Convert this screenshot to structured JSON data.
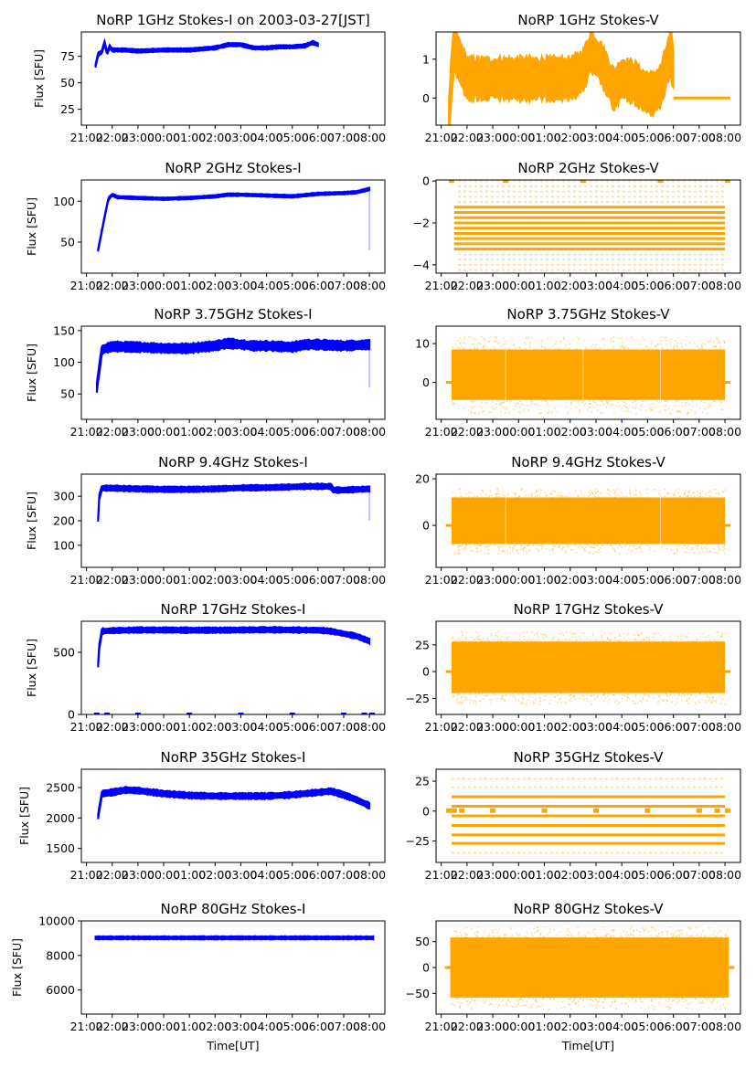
{
  "figure_title": "NoRP 1GHz Stokes-I on 2003-03-27[JST]",
  "colors": {
    "stokes_i": "#0000ff",
    "stokes_v": "#ffa500"
  },
  "chart_data": [
    {
      "type": "scatter",
      "title": "NoRP 1GHz Stokes-I on 2003-03-27[JST]",
      "xlabel": "",
      "ylabel": "Flux [SFU]",
      "ylim": [
        10,
        98
      ],
      "yticks": [
        25,
        50,
        75
      ],
      "xticks": [
        "21:00",
        "22:00",
        "23:00",
        "00:00",
        "01:00",
        "02:00",
        "03:00",
        "04:00",
        "05:00",
        "06:00",
        "07:00",
        "08:00"
      ],
      "xlim_hours": [
        20.8,
        32.6
      ],
      "series": [
        {
          "name": "Stokes-I",
          "color": "#0000ff",
          "x_hours": [
            21.35,
            21.45,
            21.6,
            21.7,
            21.8,
            21.9,
            22.0,
            22.5,
            23.0,
            24.0,
            25.0,
            26.0,
            26.5,
            27.0,
            27.5,
            28.0,
            28.5,
            29.0,
            29.5,
            29.8,
            30.0
          ],
          "y": [
            66,
            77,
            79,
            88,
            78,
            84,
            81,
            81,
            80,
            81,
            81,
            83,
            86,
            86,
            83,
            83,
            84,
            84,
            85,
            88,
            86
          ],
          "spread": 1.5
        }
      ]
    },
    {
      "type": "scatter",
      "title": "NoRP 1GHz Stokes-V",
      "xlabel": "",
      "ylabel": "",
      "ylim": [
        -0.7,
        1.7
      ],
      "yticks": [
        0,
        1
      ],
      "xticks": [
        "21:00",
        "22:00",
        "23:00",
        "00:00",
        "01:00",
        "02:00",
        "03:00",
        "04:00",
        "05:00",
        "06:00",
        "07:00",
        "08:00"
      ],
      "xlim_hours": [
        20.8,
        32.6
      ],
      "series": [
        {
          "name": "Stokes-V",
          "color": "#ffa500",
          "x_hours": [
            21.3,
            21.4,
            21.5,
            22.0,
            23.0,
            24.0,
            25.0,
            26.0,
            26.5,
            26.8,
            27.2,
            27.7,
            28.0,
            28.5,
            28.8,
            29.2,
            29.5,
            29.9,
            30.0
          ],
          "y": [
            -0.6,
            0.6,
            1.3,
            0.5,
            0.5,
            0.5,
            0.5,
            0.5,
            0.7,
            1.2,
            0.9,
            0.2,
            0.5,
            0.4,
            0.2,
            0.1,
            0.3,
            1.2,
            0.7
          ],
          "spread": 0.5,
          "flat_segment": {
            "x_hours": [
              30.0,
              32.2
            ],
            "y": 0
          }
        }
      ]
    },
    {
      "type": "scatter",
      "title": "NoRP 2GHz Stokes-I",
      "xlabel": "",
      "ylabel": "Flux [SFU]",
      "ylim": [
        12,
        126
      ],
      "yticks": [
        50,
        100
      ],
      "xticks": [
        "21:00",
        "22:00",
        "23:00",
        "00:00",
        "01:00",
        "02:00",
        "03:00",
        "04:00",
        "05:00",
        "06:00",
        "07:00",
        "08:00"
      ],
      "xlim_hours": [
        20.8,
        32.6
      ],
      "series": [
        {
          "name": "Stokes-I",
          "color": "#0000ff",
          "x_hours": [
            21.45,
            21.7,
            21.85,
            22.0,
            22.2,
            23.0,
            24.0,
            25.0,
            26.0,
            26.5,
            27.0,
            28.0,
            29.0,
            30.0,
            31.0,
            31.5,
            32.0
          ],
          "y": [
            40,
            80,
            103,
            108,
            105,
            104,
            103,
            104,
            106,
            108,
            108,
            107,
            106,
            109,
            110,
            111,
            115
          ],
          "spread": 1.5,
          "dropout": {
            "x_hours": 32.0,
            "y_min": 40
          }
        }
      ]
    },
    {
      "type": "scatter",
      "title": "NoRP 2GHz Stokes-V",
      "xlabel": "",
      "ylabel": "",
      "ylim": [
        -4.4,
        0.05
      ],
      "yticks": [
        -4,
        -2,
        0
      ],
      "xticks": [
        "21:00",
        "22:00",
        "23:00",
        "00:00",
        "01:00",
        "02:00",
        "03:00",
        "04:00",
        "05:00",
        "06:00",
        "07:00",
        "08:00"
      ],
      "xlim_hours": [
        20.8,
        32.6
      ],
      "series": [
        {
          "name": "Stokes-V",
          "color": "#ffa500",
          "quantized_levels": [
            -4.25,
            -4.0,
            -3.75,
            -3.5,
            -3.25,
            -3.0,
            -2.75,
            -2.5,
            -2.25,
            -2.0,
            -1.75,
            -1.5,
            -1.25,
            -1.0,
            -0.75,
            -0.5,
            -0.25,
            0
          ],
          "dense_levels": [
            -3.25,
            -3.0,
            -2.75,
            -2.5,
            -2.25,
            -2.0,
            -1.75,
            -1.5,
            -1.25
          ],
          "x_range_hours": [
            21.4,
            32.0
          ],
          "zero_marks_hours": [
            21.4,
            23.5,
            26.5,
            29.5,
            32.1
          ]
        }
      ]
    },
    {
      "type": "scatter",
      "title": "NoRP 3.75GHz Stokes-I",
      "xlabel": "",
      "ylabel": "Flux [SFU]",
      "ylim": [
        10,
        157
      ],
      "yticks": [
        50,
        100,
        150
      ],
      "xticks": [
        "21:00",
        "22:00",
        "23:00",
        "00:00",
        "01:00",
        "02:00",
        "03:00",
        "04:00",
        "05:00",
        "06:00",
        "07:00",
        "08:00"
      ],
      "xlim_hours": [
        20.8,
        32.6
      ],
      "series": [
        {
          "name": "Stokes-I",
          "color": "#0000ff",
          "x_hours": [
            21.4,
            21.5,
            21.6,
            22.0,
            23.0,
            24.0,
            25.0,
            26.0,
            26.5,
            27.0,
            27.5,
            28.0,
            29.0,
            29.5,
            30.0,
            31.0,
            32.0
          ],
          "y": [
            60,
            90,
            120,
            125,
            124,
            122,
            122,
            126,
            130,
            128,
            126,
            126,
            124,
            128,
            128,
            126,
            128
          ],
          "spread": 7,
          "dropout": {
            "x_hours": 32.0,
            "y_min": 60
          }
        }
      ]
    },
    {
      "type": "scatter",
      "title": "NoRP 3.75GHz Stokes-V",
      "xlabel": "",
      "ylabel": "",
      "ylim": [
        -9.5,
        14.5
      ],
      "yticks": [
        0,
        10
      ],
      "xticks": [
        "21:00",
        "22:00",
        "23:00",
        "00:00",
        "01:00",
        "02:00",
        "03:00",
        "04:00",
        "05:00",
        "06:00",
        "07:00",
        "08:00"
      ],
      "xlim_hours": [
        20.8,
        32.6
      ],
      "series": [
        {
          "name": "Stokes-V",
          "color": "#ffa500",
          "x_range_hours": [
            21.4,
            32.0
          ],
          "center": 2,
          "half_width": 6.5,
          "outlier_half_width": 10,
          "gaps_hours": [
            23.5,
            26.5,
            29.5
          ]
        }
      ]
    },
    {
      "type": "scatter",
      "title": "NoRP 9.4GHz Stokes-I",
      "xlabel": "",
      "ylabel": "Flux [SFU]",
      "ylim": [
        10,
        390
      ],
      "yticks": [
        100,
        200,
        300
      ],
      "xticks": [
        "21:00",
        "22:00",
        "23:00",
        "00:00",
        "01:00",
        "02:00",
        "03:00",
        "04:00",
        "05:00",
        "06:00",
        "07:00",
        "08:00"
      ],
      "xlim_hours": [
        20.8,
        32.6
      ],
      "series": [
        {
          "name": "Stokes-I",
          "color": "#0000ff",
          "x_hours": [
            21.45,
            21.5,
            21.6,
            22.0,
            23.0,
            24.0,
            25.0,
            26.0,
            27.0,
            28.0,
            29.0,
            29.5,
            30.5,
            30.6,
            31.0,
            32.0
          ],
          "y": [
            205,
            300,
            333,
            333,
            330,
            328,
            328,
            330,
            334,
            335,
            338,
            340,
            340,
            325,
            325,
            330
          ],
          "spread": 10,
          "dropout": {
            "x_hours": 32.0,
            "y_min": 200
          }
        }
      ]
    },
    {
      "type": "scatter",
      "title": "NoRP 9.4GHz Stokes-V",
      "xlabel": "",
      "ylabel": "",
      "ylim": [
        -18,
        22
      ],
      "yticks": [
        0,
        20
      ],
      "xticks": [
        "21:00",
        "22:00",
        "23:00",
        "00:00",
        "01:00",
        "02:00",
        "03:00",
        "04:00",
        "05:00",
        "06:00",
        "07:00",
        "08:00"
      ],
      "xlim_hours": [
        20.8,
        32.6
      ],
      "series": [
        {
          "name": "Stokes-V",
          "color": "#ffa500",
          "x_range_hours": [
            21.4,
            32.0
          ],
          "center": 2,
          "half_width": 10,
          "outlier_half_width": 14,
          "gaps_hours": [
            23.5,
            29.5
          ]
        }
      ]
    },
    {
      "type": "scatter",
      "title": "NoRP 17GHz Stokes-I",
      "xlabel": "",
      "ylabel": "Flux [SFU]",
      "ylim": [
        0,
        750
      ],
      "yticks": [
        0,
        500
      ],
      "xticks": [
        "21:00",
        "22:00",
        "23:00",
        "00:00",
        "01:00",
        "02:00",
        "03:00",
        "04:00",
        "05:00",
        "06:00",
        "07:00",
        "08:00"
      ],
      "xlim_hours": [
        20.8,
        32.6
      ],
      "series": [
        {
          "name": "Stokes-I",
          "color": "#0000ff",
          "x_hours": [
            21.45,
            21.5,
            21.6,
            22.0,
            23.0,
            24.0,
            25.0,
            26.0,
            27.0,
            28.0,
            29.0,
            30.0,
            30.5,
            31.0,
            31.5,
            32.0
          ],
          "y": [
            400,
            550,
            670,
            675,
            680,
            680,
            678,
            678,
            680,
            682,
            680,
            678,
            670,
            650,
            630,
            590
          ],
          "spread": 20,
          "zero_marks_hours": [
            21.4,
            21.8,
            23.0,
            25.0,
            27.0,
            29.0,
            31.0,
            31.8,
            32.1
          ]
        }
      ]
    },
    {
      "type": "scatter",
      "title": "NoRP 17GHz Stokes-V",
      "xlabel": "",
      "ylabel": "",
      "ylim": [
        -40,
        47
      ],
      "yticks": [
        -25,
        0,
        25
      ],
      "xticks": [
        "21:00",
        "22:00",
        "23:00",
        "00:00",
        "01:00",
        "02:00",
        "03:00",
        "04:00",
        "05:00",
        "06:00",
        "07:00",
        "08:00"
      ],
      "xlim_hours": [
        20.8,
        32.6
      ],
      "series": [
        {
          "name": "Stokes-V",
          "color": "#ffa500",
          "x_range_hours": [
            21.4,
            32.0
          ],
          "center": 4,
          "half_width": 24,
          "outlier_half_width": 34,
          "gaps_hours": []
        }
      ]
    },
    {
      "type": "scatter",
      "title": "NoRP 35GHz Stokes-I",
      "xlabel": "",
      "ylabel": "Flux [SFU]",
      "ylim": [
        1270,
        2800
      ],
      "yticks": [
        1500,
        2000,
        2500
      ],
      "xticks": [
        "21:00",
        "22:00",
        "23:00",
        "00:00",
        "01:00",
        "02:00",
        "03:00",
        "04:00",
        "05:00",
        "06:00",
        "07:00",
        "08:00"
      ],
      "xlim_hours": [
        20.8,
        32.6
      ],
      "series": [
        {
          "name": "Stokes-I",
          "color": "#0000ff",
          "x_hours": [
            21.45,
            21.5,
            21.6,
            22.0,
            22.5,
            23.0,
            24.0,
            25.0,
            26.0,
            27.0,
            28.0,
            29.0,
            30.0,
            30.5,
            31.0,
            31.5,
            32.0
          ],
          "y": [
            2020,
            2150,
            2400,
            2420,
            2460,
            2450,
            2400,
            2370,
            2360,
            2360,
            2360,
            2380,
            2420,
            2440,
            2380,
            2300,
            2200
          ],
          "spread": 45
        }
      ]
    },
    {
      "type": "scatter",
      "title": "NoRP 35GHz Stokes-V",
      "xlabel": "",
      "ylabel": "",
      "ylim": [
        -43,
        35
      ],
      "yticks": [
        -25,
        0,
        25
      ],
      "xticks": [
        "21:00",
        "22:00",
        "23:00",
        "00:00",
        "01:00",
        "02:00",
        "03:00",
        "04:00",
        "05:00",
        "06:00",
        "07:00",
        "08:00"
      ],
      "xlim_hours": [
        20.8,
        32.6
      ],
      "series": [
        {
          "name": "Stokes-V",
          "color": "#ffa500",
          "dense_levels": [
            -27,
            -20,
            -12,
            -4,
            4,
            12
          ],
          "sparse_levels": [
            -35,
            20,
            27
          ],
          "x_range_hours": [
            21.4,
            32.0
          ],
          "zero_marks_hours": [
            21.3,
            21.5,
            21.8,
            23.0,
            25.0,
            27.0,
            29.0,
            31.0,
            31.7,
            32.1
          ]
        }
      ]
    },
    {
      "type": "scatter",
      "title": "NoRP 80GHz Stokes-I",
      "xlabel": "Time[UT]",
      "ylabel": "Flux [SFU]",
      "ylim": [
        4600,
        10000
      ],
      "yticks": [
        6000,
        8000,
        10000
      ],
      "xticks": [
        "21:00",
        "22:00",
        "23:00",
        "00:00",
        "01:00",
        "02:00",
        "03:00",
        "04:00",
        "05:00",
        "06:00",
        "07:00",
        "08:00"
      ],
      "xlim_hours": [
        20.8,
        32.6
      ],
      "series": [
        {
          "name": "Stokes-I",
          "color": "#0000ff",
          "x_hours": [
            21.35,
            32.15
          ],
          "y": [
            9020,
            9020
          ],
          "spread": 80
        }
      ]
    },
    {
      "type": "scatter",
      "title": "NoRP 80GHz Stokes-V",
      "xlabel": "Time[UT]",
      "ylabel": "",
      "ylim": [
        -90,
        90
      ],
      "yticks": [
        -50,
        0,
        50
      ],
      "xticks": [
        "21:00",
        "22:00",
        "23:00",
        "00:00",
        "01:00",
        "02:00",
        "03:00",
        "04:00",
        "05:00",
        "06:00",
        "07:00",
        "08:00"
      ],
      "xlim_hours": [
        20.8,
        32.6
      ],
      "series": [
        {
          "name": "Stokes-V",
          "color": "#ffa500",
          "x_range_hours": [
            21.35,
            32.15
          ],
          "center": 0,
          "half_width": 58,
          "outlier_half_width": 80,
          "gaps_hours": []
        }
      ]
    }
  ]
}
